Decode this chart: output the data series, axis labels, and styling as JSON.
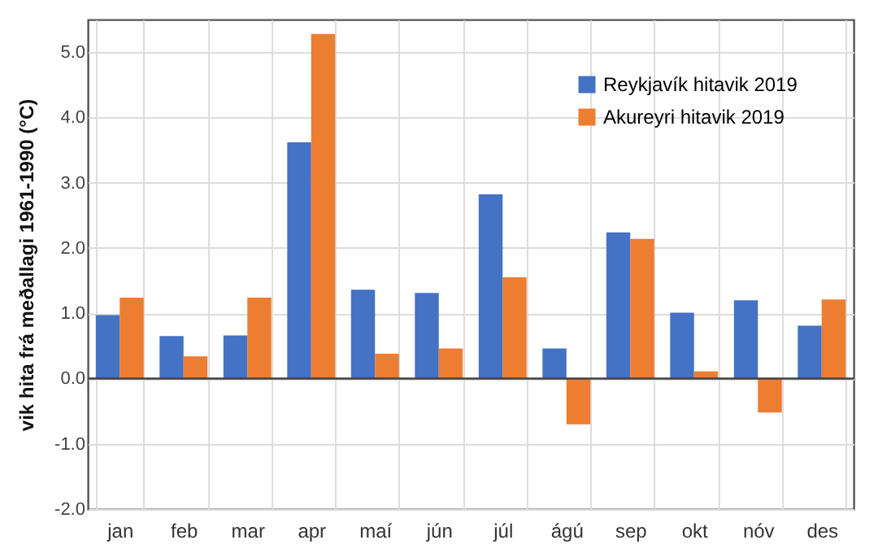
{
  "chart_data": {
    "type": "bar",
    "ylabel": "vik hita frá meðallagi 1961-1990 (°C)",
    "categories": [
      "jan",
      "feb",
      "mar",
      "apr",
      "maí",
      "jún",
      "júl",
      "ágú",
      "sep",
      "okt",
      "nóv",
      "des"
    ],
    "series": [
      {
        "name": "Reykjavík hitavik 2019",
        "color": "#4472c4",
        "values": [
          0.97,
          0.65,
          0.66,
          3.62,
          1.36,
          1.31,
          2.82,
          0.46,
          2.24,
          1.01,
          1.2,
          0.81
        ]
      },
      {
        "name": "Akureyri hitavik 2019",
        "color": "#ed7d31",
        "values": [
          1.24,
          0.34,
          1.24,
          5.28,
          0.38,
          0.46,
          1.55,
          -0.7,
          2.14,
          0.11,
          -0.52,
          1.21
        ]
      }
    ],
    "ylim": [
      -2,
      5.5
    ],
    "yticks": [
      {
        "value": -2,
        "label": "-2.0"
      },
      {
        "value": -1,
        "label": "-1.0"
      },
      {
        "value": 0,
        "label": "0.0"
      },
      {
        "value": 1,
        "label": "1.0"
      },
      {
        "value": 2,
        "label": "2.0"
      },
      {
        "value": 3,
        "label": "3.0"
      },
      {
        "value": 4,
        "label": "4.0"
      },
      {
        "value": 5,
        "label": "5.0"
      }
    ],
    "ref_lines": [
      {
        "axis": "y",
        "value": 0,
        "color": "#404040"
      }
    ],
    "grid": true,
    "legend": "top right"
  }
}
